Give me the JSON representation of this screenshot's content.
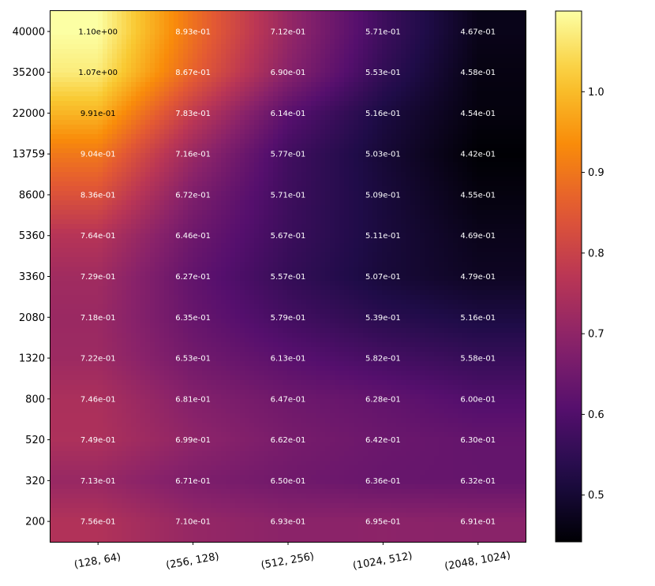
{
  "chart_data": {
    "type": "heatmap",
    "title": "",
    "xlabel": "",
    "ylabel": "",
    "colormap": "inferno",
    "interpolation": "bilinear",
    "x_categories": [
      "(128, 64)",
      "(256, 128)",
      "(512, 256)",
      "(1024, 512)",
      "(2048, 1024)"
    ],
    "y_categories": [
      "40000",
      "35200",
      "22000",
      "13759",
      "8600",
      "5360",
      "3360",
      "2080",
      "1320",
      "800",
      "520",
      "320",
      "200"
    ],
    "values": [
      [
        1.1,
        0.893,
        0.712,
        0.571,
        0.467
      ],
      [
        1.07,
        0.867,
        0.69,
        0.553,
        0.458
      ],
      [
        0.991,
        0.783,
        0.614,
        0.516,
        0.454
      ],
      [
        0.904,
        0.716,
        0.577,
        0.503,
        0.442
      ],
      [
        0.836,
        0.672,
        0.571,
        0.509,
        0.455
      ],
      [
        0.764,
        0.646,
        0.567,
        0.511,
        0.469
      ],
      [
        0.729,
        0.627,
        0.557,
        0.507,
        0.479
      ],
      [
        0.718,
        0.635,
        0.579,
        0.539,
        0.516
      ],
      [
        0.722,
        0.653,
        0.613,
        0.582,
        0.558
      ],
      [
        0.746,
        0.681,
        0.647,
        0.628,
        0.6
      ],
      [
        0.749,
        0.699,
        0.662,
        0.642,
        0.63
      ],
      [
        0.713,
        0.671,
        0.65,
        0.636,
        0.632
      ],
      [
        0.756,
        0.71,
        0.693,
        0.695,
        0.691
      ]
    ],
    "labels": [
      [
        "1.10e+00",
        "8.93e-01",
        "7.12e-01",
        "5.71e-01",
        "4.67e-01"
      ],
      [
        "1.07e+00",
        "8.67e-01",
        "6.90e-01",
        "5.53e-01",
        "4.58e-01"
      ],
      [
        "9.91e-01",
        "7.83e-01",
        "6.14e-01",
        "5.16e-01",
        "4.54e-01"
      ],
      [
        "9.04e-01",
        "7.16e-01",
        "5.77e-01",
        "5.03e-01",
        "4.42e-01"
      ],
      [
        "8.36e-01",
        "6.72e-01",
        "5.71e-01",
        "5.09e-01",
        "4.55e-01"
      ],
      [
        "7.64e-01",
        "6.46e-01",
        "5.67e-01",
        "5.11e-01",
        "4.69e-01"
      ],
      [
        "7.29e-01",
        "6.27e-01",
        "5.57e-01",
        "5.07e-01",
        "4.79e-01"
      ],
      [
        "7.18e-01",
        "6.35e-01",
        "5.79e-01",
        "5.39e-01",
        "5.16e-01"
      ],
      [
        "7.22e-01",
        "6.53e-01",
        "6.13e-01",
        "5.82e-01",
        "5.58e-01"
      ],
      [
        "7.46e-01",
        "6.81e-01",
        "6.47e-01",
        "6.28e-01",
        "6.00e-01"
      ],
      [
        "7.49e-01",
        "6.99e-01",
        "6.62e-01",
        "6.42e-01",
        "6.30e-01"
      ],
      [
        "7.13e-01",
        "6.71e-01",
        "6.50e-01",
        "6.36e-01",
        "6.32e-01"
      ],
      [
        "7.56e-01",
        "7.10e-01",
        "6.93e-01",
        "6.95e-01",
        "6.91e-01"
      ]
    ],
    "dark_label_cells": [
      [
        0,
        0
      ],
      [
        1,
        0
      ],
      [
        2,
        0
      ]
    ],
    "label_colors": {
      "light": "#ffffff",
      "dark": "#000000"
    },
    "vmin": 0.442,
    "vmax": 1.1,
    "colorbar": {
      "ticks": [
        0.5,
        0.6,
        0.7,
        0.8,
        0.9,
        1.0
      ],
      "tick_labels": [
        "0.5",
        "0.6",
        "0.7",
        "0.8",
        "0.9",
        "1.0"
      ],
      "placement": "right"
    },
    "grid": false,
    "legend": "none"
  }
}
